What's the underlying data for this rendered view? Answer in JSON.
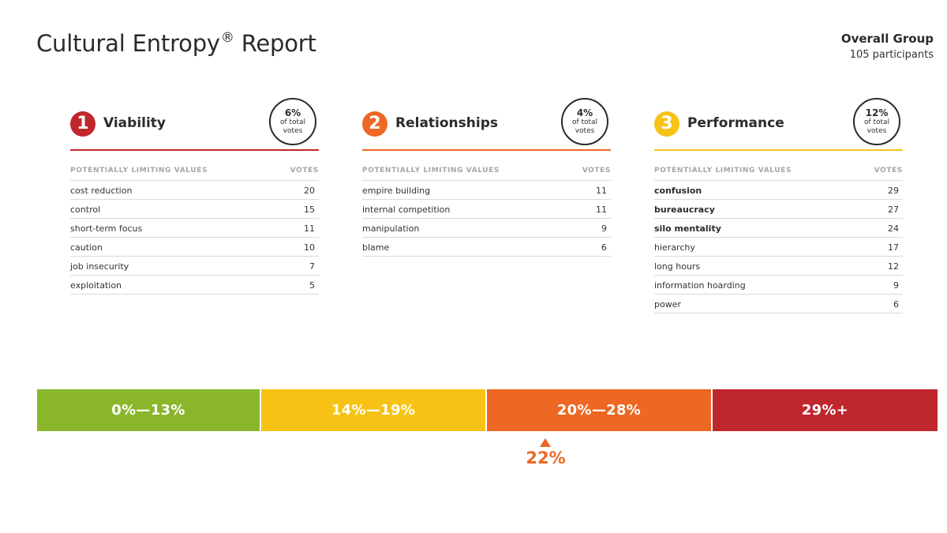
{
  "header": {
    "title": "Cultural Entropy",
    "title_mark": "®",
    "title_suffix": "Report",
    "group_name": "Overall Group",
    "group_count": "105 participants"
  },
  "panels": [
    {
      "number": "1",
      "name": "Viability",
      "color": "#c0272d",
      "percent": "6%",
      "percent_caption_1": "of total",
      "percent_caption_2": "votes",
      "col_value": "POTENTIALLY LIMITING VALUES",
      "col_votes": "VOTES",
      "rows": [
        {
          "value": "cost reduction",
          "votes": "20",
          "bold": false
        },
        {
          "value": "control",
          "votes": "15",
          "bold": false
        },
        {
          "value": "short-term focus",
          "votes": "11",
          "bold": false
        },
        {
          "value": "caution",
          "votes": "10",
          "bold": false
        },
        {
          "value": "job insecurity",
          "votes": "7",
          "bold": false
        },
        {
          "value": "exploitation",
          "votes": "5",
          "bold": false
        }
      ]
    },
    {
      "number": "2",
      "name": "Relationships",
      "color": "#ee6723",
      "percent": "4%",
      "percent_caption_1": "of total",
      "percent_caption_2": "votes",
      "col_value": "POTENTIALLY LIMITING VALUES",
      "col_votes": "VOTES",
      "rows": [
        {
          "value": "empire building",
          "votes": "11",
          "bold": false
        },
        {
          "value": "internal competition",
          "votes": "11",
          "bold": false
        },
        {
          "value": "manipulation",
          "votes": "9",
          "bold": false
        },
        {
          "value": "blame",
          "votes": "6",
          "bold": false
        }
      ]
    },
    {
      "number": "3",
      "name": "Performance",
      "color": "#f6c315",
      "percent": "12%",
      "percent_caption_1": "of total",
      "percent_caption_2": "votes",
      "col_value": "POTENTIALLY LIMITING VALUES",
      "col_votes": "VOTES",
      "rows": [
        {
          "value": "confusion",
          "votes": "29",
          "bold": true
        },
        {
          "value": "bureaucracy",
          "votes": "27",
          "bold": true
        },
        {
          "value": "silo mentality",
          "votes": "24",
          "bold": true
        },
        {
          "value": "hierarchy",
          "votes": "17",
          "bold": false
        },
        {
          "value": "long hours",
          "votes": "12",
          "bold": false
        },
        {
          "value": "information hoarding",
          "votes": "9",
          "bold": false
        },
        {
          "value": "power",
          "votes": "6",
          "bold": false
        }
      ]
    }
  ],
  "scale": {
    "segments": [
      {
        "label": "0%—13%",
        "color": "#8ab62b"
      },
      {
        "label": "14%—19%",
        "color": "#f6c315"
      },
      {
        "label": "20%—28%",
        "color": "#ee6723"
      },
      {
        "label": "29%+",
        "color": "#c0272d"
      }
    ],
    "marker_value": "22%",
    "marker_color": "#ee6723"
  }
}
